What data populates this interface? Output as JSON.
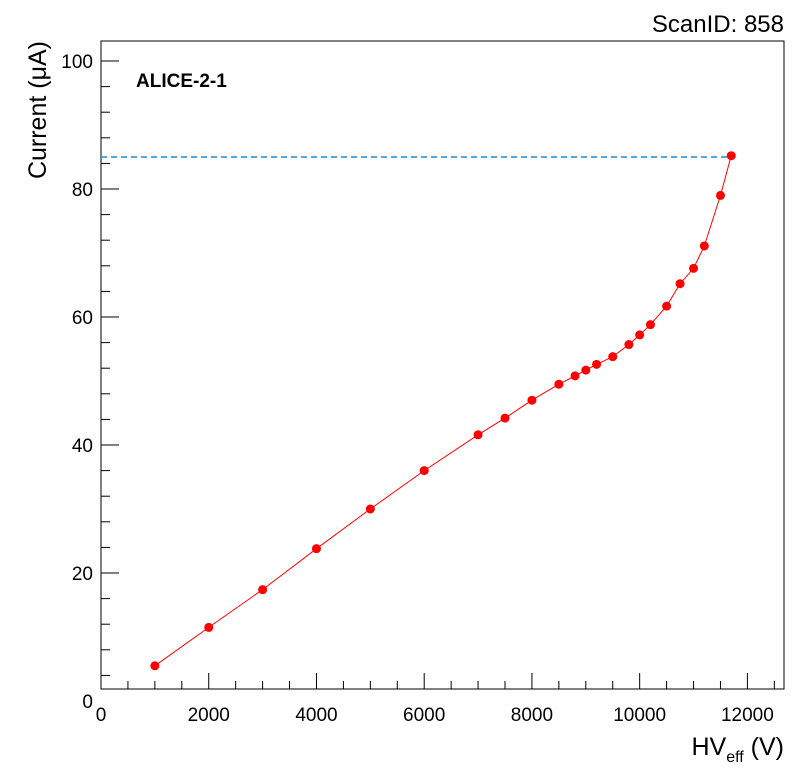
{
  "chart_data": {
    "type": "scatter",
    "scan_id": "ScanID: 858",
    "annotation": "ALICE-2-1",
    "xlabel_main": "HV",
    "xlabel_sub": "eff",
    "xlabel_unit": "(V)",
    "ylabel": "Current (μA)",
    "xlim": [
      0,
      13000
    ],
    "ylim": [
      0,
      100
    ],
    "x_ticks": [
      0,
      2000,
      4000,
      6000,
      8000,
      10000,
      12000
    ],
    "y_ticks": [
      0,
      20,
      40,
      60,
      80,
      100
    ],
    "x_tick_labels": [
      "0",
      "2000",
      "4000",
      "6000",
      "8000",
      "10000",
      "12000"
    ],
    "y_tick_labels": [
      "0",
      "20",
      "40",
      "60",
      "80",
      "100"
    ],
    "grid": false,
    "marker_color": "#ff0000",
    "line_color": "#ff0000",
    "reference_line": {
      "y": 85,
      "style": "dashed",
      "color": "#1a8cd8"
    },
    "series": [
      {
        "x": [
          1000,
          2000,
          3000,
          4000,
          5000,
          6000,
          7000,
          7500,
          8000,
          8500,
          8800,
          9000,
          9200,
          9500,
          9800,
          10000,
          10200,
          10500,
          10750,
          11000,
          11200,
          11500,
          11700
        ],
        "y": [
          5.5,
          11.5,
          17.4,
          23.8,
          30.0,
          36.0,
          41.6,
          44.2,
          47.0,
          49.5,
          50.8,
          51.7,
          52.6,
          53.8,
          55.7,
          57.2,
          58.8,
          61.7,
          65.2,
          67.6,
          71.1,
          79.0,
          85.2
        ]
      }
    ]
  }
}
